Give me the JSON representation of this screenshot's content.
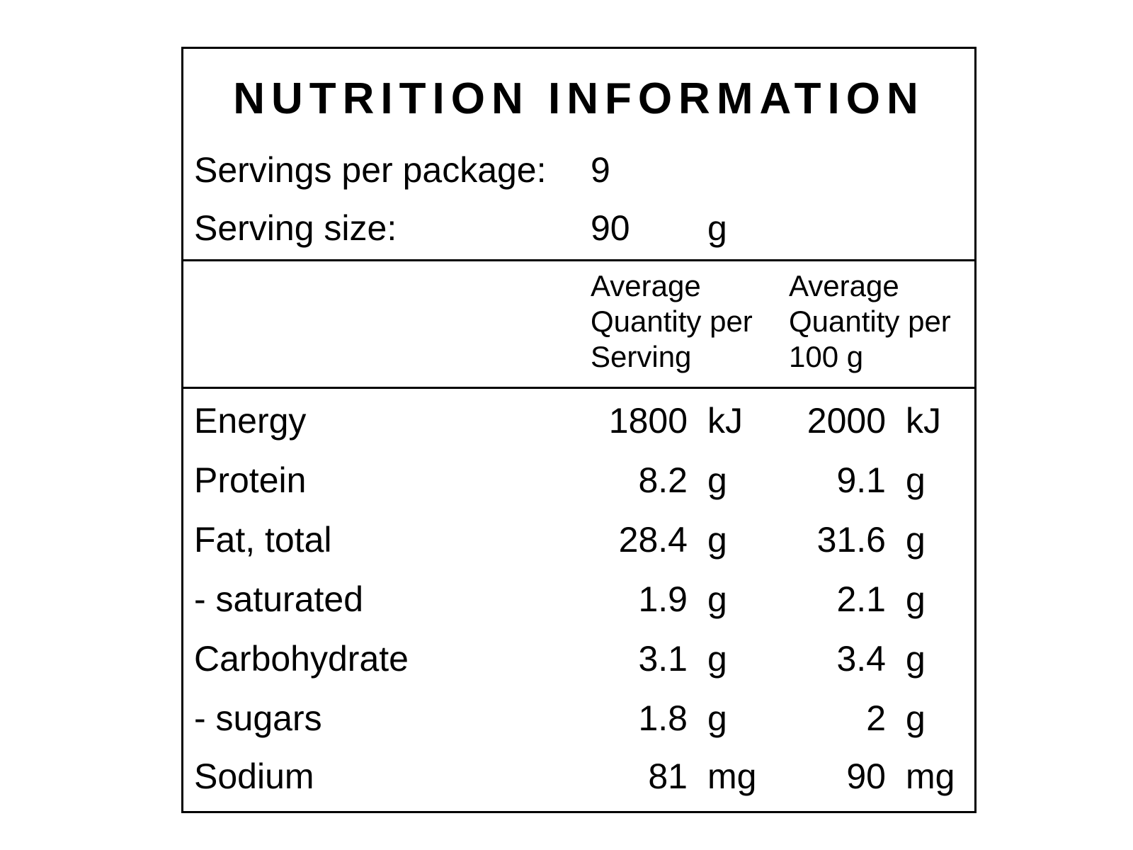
{
  "label": {
    "title": "NUTRITION INFORMATION",
    "servings_per_package_label": "Servings per package:",
    "servings_per_package_value": "9",
    "serving_size_label": "Serving size:",
    "serving_size_value": "90",
    "serving_size_unit": "g",
    "column_per_serving": [
      "Average",
      "Quantity per",
      "Serving"
    ],
    "column_per_100g": [
      "Average",
      "Quantity per",
      "100 g"
    ],
    "rows": [
      {
        "name": "Energy",
        "per_serving": "1800",
        "per_serving_unit": "kJ",
        "per_100g": "2000",
        "per_100g_unit": "kJ"
      },
      {
        "name": "Protein",
        "per_serving": "8.2",
        "per_serving_unit": "g",
        "per_100g": "9.1",
        "per_100g_unit": "g"
      },
      {
        "name": "Fat, total",
        "per_serving": "28.4",
        "per_serving_unit": "g",
        "per_100g": "31.6",
        "per_100g_unit": "g"
      },
      {
        "name": "- saturated",
        "per_serving": "1.9",
        "per_serving_unit": "g",
        "per_100g": "2.1",
        "per_100g_unit": "g"
      },
      {
        "name": "Carbohydrate",
        "per_serving": "3.1",
        "per_serving_unit": "g",
        "per_100g": "3.4",
        "per_100g_unit": "g"
      },
      {
        "name": "- sugars",
        "per_serving": "1.8",
        "per_serving_unit": "g",
        "per_100g": "2",
        "per_100g_unit": "g"
      },
      {
        "name": "Sodium",
        "per_serving": "81",
        "per_serving_unit": "mg",
        "per_100g": "90",
        "per_100g_unit": "mg"
      }
    ]
  }
}
